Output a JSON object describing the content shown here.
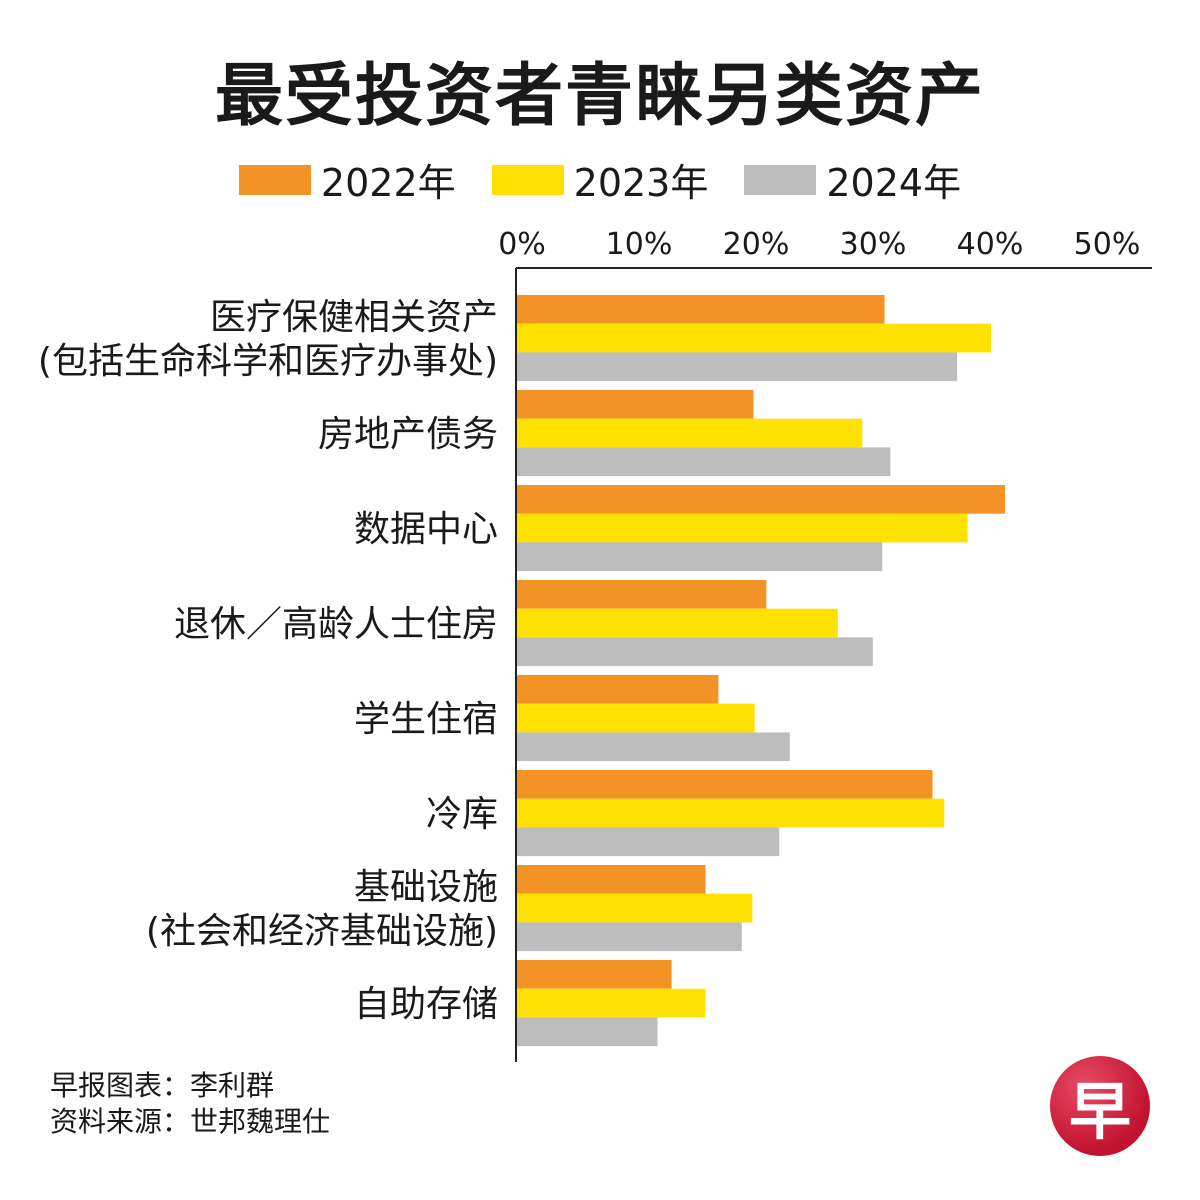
{
  "title": "最受投资者青睐另类资产",
  "chart_data": {
    "type": "bar",
    "orientation": "horizontal",
    "title": "最受投资者青睐另类资产",
    "categories": [
      [
        "医疗保健相关资产",
        "(包括生命科学和医疗办事处)"
      ],
      [
        "房地产债务"
      ],
      [
        "数据中心"
      ],
      [
        "退休／高龄人士住房"
      ],
      [
        "学生住宿"
      ],
      [
        "冷库"
      ],
      [
        "基础设施",
        "(社会和经济基础设施)"
      ],
      [
        "自助存储"
      ]
    ],
    "series": [
      {
        "name": "2022年",
        "color": "#f39325",
        "values": [
          31.5,
          20.3,
          41.8,
          21.4,
          17.3,
          35.6,
          16.2,
          13.3
        ]
      },
      {
        "name": "2023年",
        "color": "#ffe100",
        "values": [
          40.6,
          29.6,
          38.6,
          27.5,
          20.4,
          36.6,
          20.2,
          16.2
        ]
      },
      {
        "name": "2024年",
        "color": "#bdbdbd",
        "values": [
          37.7,
          32.0,
          31.3,
          30.5,
          23.4,
          22.5,
          19.3,
          12.1
        ]
      }
    ],
    "xlim": [
      0,
      50
    ],
    "ticks": [
      "0%",
      "10%",
      "20%",
      "30%",
      "40%",
      "50%"
    ],
    "legend": "top-center"
  },
  "credits": {
    "line1": "早报图表：李利群",
    "line2": "资料来源：世邦魏理仕"
  },
  "logo_text": "早"
}
